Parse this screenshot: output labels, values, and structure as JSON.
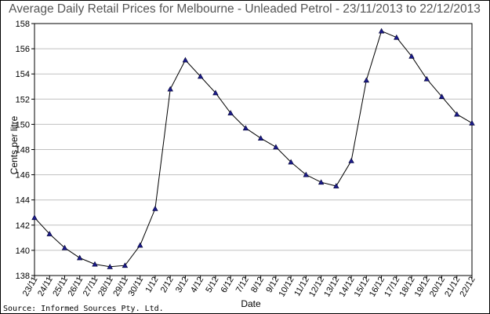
{
  "chart_data": {
    "type": "line",
    "title": "Average Daily Retail Prices for Melbourne - Unleaded Petrol - 23/11/2013 to 22/12/2013",
    "xlabel": "Date",
    "ylabel": "Cents per litre",
    "source": "Source: Informed Sources Pty. Ltd.",
    "ylim": [
      138,
      158
    ],
    "yticks": [
      138,
      140,
      142,
      144,
      146,
      148,
      150,
      152,
      154,
      156,
      158
    ],
    "grid": true,
    "legend": "none",
    "categories": [
      "23/11",
      "24/11",
      "25/11",
      "26/11",
      "27/11",
      "28/11",
      "29/11",
      "30/11",
      "1/12",
      "2/12",
      "3/12",
      "4/12",
      "5/12",
      "6/12",
      "7/12",
      "8/12",
      "9/12",
      "10/12",
      "11/12",
      "12/12",
      "13/12",
      "14/12",
      "15/12",
      "16/12",
      "17/12",
      "18/12",
      "19/12",
      "20/12",
      "21/12",
      "22/12"
    ],
    "values": [
      142.6,
      141.3,
      140.2,
      139.4,
      138.9,
      138.7,
      138.8,
      140.4,
      143.3,
      152.8,
      155.1,
      153.8,
      152.5,
      150.9,
      149.7,
      148.9,
      148.2,
      147.0,
      146.0,
      145.4,
      145.1,
      147.1,
      153.5,
      157.4,
      156.9,
      155.4,
      153.6,
      152.2,
      150.8,
      150.1
    ],
    "colors": {
      "line": "#000000",
      "marker": "#1c1c8c",
      "grid": "#c0c0c0",
      "frame": "#000000"
    }
  }
}
